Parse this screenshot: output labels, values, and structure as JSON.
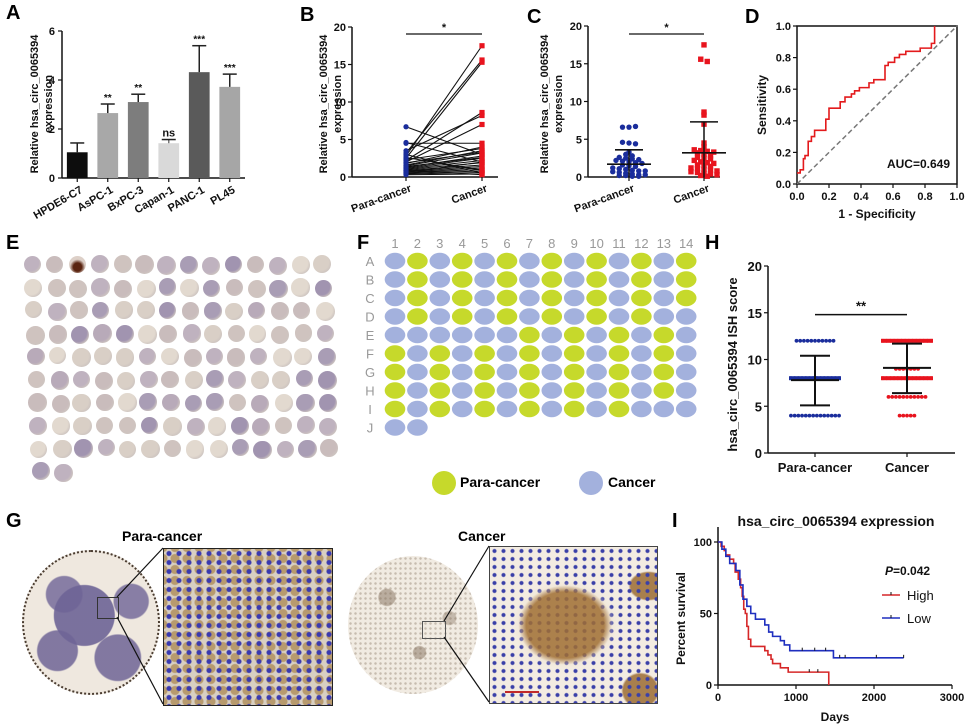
{
  "figure": {
    "panel_labels": [
      "A",
      "B",
      "C",
      "D",
      "E",
      "F",
      "G",
      "H",
      "I"
    ],
    "target_name": "hsa_circ_0065394",
    "colors": {
      "para_cancer_blue": "#1a2d9c",
      "cancer_red": "#e8141e",
      "roc_red": "#e31a1c",
      "diagonal_gray": "#777777",
      "grid_green": "#c6d92b",
      "grid_blue": "#a3b1dd",
      "km_high": "#d62728",
      "km_low": "#1f2fbf",
      "scale_bar": "#c0282a"
    }
  },
  "chart_data": [
    {
      "panel": "A",
      "type": "bar",
      "ylabel": "Relative hsa_circ_0065394 expression",
      "ylim": [
        0,
        6
      ],
      "yticks": [
        "0",
        "2",
        "4",
        "6"
      ],
      "categories": [
        "HPDE6-C7",
        "AsPC-1",
        "BxPC-3",
        "Capan-1",
        "PANC-1",
        "PL45"
      ],
      "values": [
        1.05,
        2.65,
        3.1,
        1.42,
        4.32,
        3.72
      ],
      "errors": [
        0.38,
        0.37,
        0.32,
        0.15,
        1.08,
        0.52
      ],
      "bar_colors": [
        "#0d0d0d",
        "#a8a8a8",
        "#7d7d7d",
        "#d9d9d9",
        "#5a5a5a",
        "#a6a6a6"
      ],
      "significance": [
        "",
        "**",
        "**",
        "ns",
        "***",
        "***"
      ]
    },
    {
      "panel": "B",
      "type": "line",
      "subtype": "paired",
      "ylabel": "Relative hsa_circ_0065394 expression",
      "ylim": [
        0,
        20
      ],
      "yticks": [
        "0",
        "5",
        "10",
        "15",
        "20"
      ],
      "categories": [
        "Para-cancer",
        "Cancer"
      ],
      "significance": "*",
      "pairs": [
        [
          6.7,
          3.0
        ],
        [
          4.6,
          2.0
        ],
        [
          4.5,
          4.5
        ],
        [
          3.5,
          8.2
        ],
        [
          3.2,
          15.6
        ],
        [
          2.8,
          17.5
        ],
        [
          2.5,
          15.3
        ],
        [
          2.2,
          8.6
        ],
        [
          2.0,
          7.0
        ],
        [
          1.8,
          4.0
        ],
        [
          1.6,
          3.5
        ],
        [
          1.5,
          3.2
        ],
        [
          1.3,
          2.8
        ],
        [
          1.2,
          2.5
        ],
        [
          1.1,
          2.2
        ],
        [
          1.0,
          1.9
        ],
        [
          0.9,
          1.6
        ],
        [
          0.8,
          1.4
        ],
        [
          0.7,
          1.2
        ],
        [
          0.6,
          1.0
        ],
        [
          0.5,
          0.8
        ],
        [
          0.4,
          0.6
        ],
        [
          0.3,
          0.4
        ],
        [
          3.0,
          0.5
        ],
        [
          2.6,
          0.9
        ],
        [
          2.3,
          3.8
        ],
        [
          1.9,
          3.3
        ],
        [
          1.4,
          2.6
        ],
        [
          0.9,
          0.3
        ],
        [
          0.6,
          2.0
        ]
      ]
    },
    {
      "panel": "C",
      "type": "scatter",
      "ylabel": "Relative hsa_circ_0065394 expression",
      "ylim": [
        0,
        20
      ],
      "yticks": [
        "0",
        "5",
        "10",
        "15",
        "20"
      ],
      "categories": [
        "Para-cancer",
        "Cancer"
      ],
      "significance": "*",
      "groups": [
        {
          "name": "Para-cancer",
          "mean": 1.7,
          "sd_upper": 3.6,
          "sd_lower": 0,
          "values": [
            6.6,
            6.6,
            6.7,
            4.6,
            4.5,
            4.4,
            3.3,
            3.0,
            2.8,
            2.6,
            2.5,
            2.4,
            2.3,
            2.2,
            2.1,
            2.0,
            1.9,
            1.8,
            1.6,
            1.5,
            1.4,
            1.2,
            1.1,
            1.0,
            0.9,
            0.8,
            0.8,
            0.7,
            0.6,
            0.5,
            0.4,
            0.3,
            0.3,
            0.2,
            0.2,
            0.1,
            0.1
          ]
        },
        {
          "name": "Cancer",
          "mean": 3.2,
          "sd_upper": 7.3,
          "sd_lower": 0,
          "values": [
            17.5,
            15.6,
            15.3,
            8.6,
            8.2,
            7.0,
            4.5,
            4.0,
            3.6,
            3.5,
            3.4,
            3.3,
            3.2,
            3.0,
            2.8,
            2.6,
            2.5,
            2.4,
            2.2,
            2.0,
            1.9,
            1.8,
            1.6,
            1.5,
            1.4,
            1.2,
            1.1,
            1.0,
            0.9,
            0.8,
            0.7,
            0.6,
            0.5,
            0.4,
            0.3,
            0.2,
            0.1
          ]
        }
      ]
    },
    {
      "panel": "D",
      "type": "line",
      "subtype": "roc",
      "xlabel": "1 - Specificity",
      "ylabel": "Sensitivity",
      "xlim": [
        0,
        1
      ],
      "ylim": [
        0,
        1
      ],
      "xticks": [
        "0.0",
        "0.2",
        "0.4",
        "0.6",
        "0.8",
        "1.0"
      ],
      "yticks": [
        "0.0",
        "0.2",
        "0.4",
        "0.6",
        "0.8",
        "1.0"
      ],
      "annotation": "AUC=0.649",
      "x": [
        0,
        0.02,
        0.02,
        0.04,
        0.04,
        0.05,
        0.05,
        0.07,
        0.07,
        0.09,
        0.09,
        0.11,
        0.11,
        0.18,
        0.18,
        0.2,
        0.2,
        0.27,
        0.27,
        0.3,
        0.3,
        0.34,
        0.34,
        0.36,
        0.36,
        0.39,
        0.39,
        0.45,
        0.45,
        0.48,
        0.48,
        0.55,
        0.55,
        0.57,
        0.57,
        0.61,
        0.61,
        0.64,
        0.64,
        0.68,
        0.68,
        0.77,
        0.77,
        0.84,
        0.84,
        0.86,
        0.86
      ],
      "y": [
        0.07,
        0.07,
        0.09,
        0.09,
        0.16,
        0.16,
        0.18,
        0.18,
        0.27,
        0.27,
        0.3,
        0.3,
        0.34,
        0.34,
        0.41,
        0.41,
        0.48,
        0.48,
        0.52,
        0.52,
        0.55,
        0.55,
        0.57,
        0.57,
        0.59,
        0.59,
        0.61,
        0.61,
        0.64,
        0.64,
        0.66,
        0.66,
        0.75,
        0.75,
        0.77,
        0.77,
        0.8,
        0.8,
        0.82,
        0.82,
        0.84,
        0.84,
        0.86,
        0.86,
        0.89,
        0.89,
        1.0
      ],
      "diagonal": true
    },
    {
      "panel": "F",
      "type": "heatmap",
      "columns": [
        "1",
        "2",
        "3",
        "4",
        "5",
        "6",
        "7",
        "8",
        "9",
        "10",
        "11",
        "12",
        "13",
        "14"
      ],
      "rows": [
        "A",
        "B",
        "C",
        "D",
        "E",
        "F",
        "G",
        "H",
        "I",
        "J"
      ],
      "legend": [
        {
          "key": "P",
          "label": "Para-cancer"
        },
        {
          "key": "C",
          "label": "Cancer"
        }
      ],
      "cells": [
        "CPCPCPCPCPCPCP",
        "CPCPCPCPCPCPCP",
        "CPCPCPCPCPCPCP",
        "CPCPCPCPCPCPCC",
        "CCCCCCPCPCPCPC",
        "PCPCPCPCPCPCPC",
        "PCPCPCPCPCPCPC",
        "PCPCPCPCPCPCPC",
        "PCPCPCPCPCPCCC",
        "CC"
      ]
    },
    {
      "panel": "H",
      "type": "scatter",
      "ylabel": "hsa_circ_0065394 ISH score",
      "ylim": [
        0,
        20
      ],
      "yticks": [
        "0",
        "5",
        "10",
        "15",
        "20"
      ],
      "categories": [
        "Para-cancer",
        "Cancer"
      ],
      "significance": "**",
      "groups": [
        {
          "name": "Para-cancer",
          "mean": 7.8,
          "sd_upper": 10.4,
          "sd_lower": 5.1,
          "levels": [
            {
              "score": 12,
              "count": 11
            },
            {
              "score": 8,
              "count": 14
            },
            {
              "score": 4,
              "count": 14
            }
          ]
        },
        {
          "name": "Cancer",
          "mean": 9.1,
          "sd_upper": 11.7,
          "sd_lower": 6.4,
          "levels": [
            {
              "score": 12,
              "count": 14
            },
            {
              "score": 9,
              "count": 7
            },
            {
              "score": 8,
              "count": 14
            },
            {
              "score": 6,
              "count": 11
            },
            {
              "score": 4,
              "count": 5
            }
          ]
        }
      ]
    },
    {
      "panel": "I",
      "type": "line",
      "subtype": "kaplan-meier",
      "title": "hsa_circ_0065394 expression",
      "xlabel": "Days",
      "ylabel": "Percent survival",
      "xlim": [
        0,
        3000
      ],
      "ylim": [
        0,
        110
      ],
      "xticks": [
        "0",
        "1000",
        "2000",
        "3000"
      ],
      "yticks": [
        "0",
        "50",
        "100"
      ],
      "annotation": "P=0.042",
      "annotation_italic": "P",
      "annotation_rest": "=0.042",
      "series": [
        {
          "name": "High",
          "color": "#d62728",
          "x": [
            0,
            40,
            40,
            80,
            80,
            100,
            100,
            150,
            150,
            200,
            200,
            220,
            220,
            260,
            260,
            290,
            290,
            310,
            310,
            330,
            330,
            350,
            350,
            370,
            370,
            390,
            390,
            420,
            420,
            600,
            600,
            640,
            640,
            680,
            680,
            700,
            700,
            800,
            800,
            850,
            850,
            900,
            900,
            1420,
            1420
          ],
          "y": [
            100,
            100,
            97,
            97,
            94,
            94,
            91,
            91,
            88,
            88,
            85,
            85,
            79,
            79,
            74,
            74,
            68,
            68,
            62,
            62,
            53,
            53,
            50,
            50,
            41,
            41,
            32,
            32,
            27,
            27,
            24,
            24,
            21,
            21,
            18,
            18,
            15,
            15,
            12,
            12,
            12,
            12,
            9,
            9,
            0
          ],
          "censors": [
            [
              1170,
              9
            ],
            [
              1280,
              9
            ]
          ]
        },
        {
          "name": "Low",
          "color": "#1f2fbf",
          "x": [
            0,
            50,
            50,
            100,
            100,
            150,
            150,
            230,
            230,
            280,
            280,
            320,
            320,
            370,
            370,
            420,
            420,
            480,
            480,
            600,
            600,
            650,
            650,
            700,
            700,
            800,
            800,
            850,
            850,
            920,
            920,
            1480,
            1480,
            2380
          ],
          "y": [
            100,
            100,
            95,
            95,
            90,
            90,
            85,
            85,
            80,
            80,
            70,
            70,
            60,
            60,
            55,
            55,
            50,
            50,
            46,
            46,
            42,
            42,
            37,
            37,
            34,
            34,
            31,
            31,
            28,
            28,
            24,
            24,
            19,
            19
          ],
          "censors": [
            [
              1080,
              24
            ],
            [
              1240,
              24
            ],
            [
              1380,
              24
            ],
            [
              1560,
              19
            ],
            [
              1630,
              19
            ],
            [
              2030,
              19
            ],
            [
              2380,
              19
            ]
          ]
        }
      ]
    }
  ],
  "panel_E": {
    "grid_rows": [
      14,
      14,
      14,
      14,
      14,
      14,
      14,
      14,
      14,
      2
    ]
  },
  "panel_G": {
    "left_title": "Para-cancer",
    "right_title": "Cancer"
  }
}
